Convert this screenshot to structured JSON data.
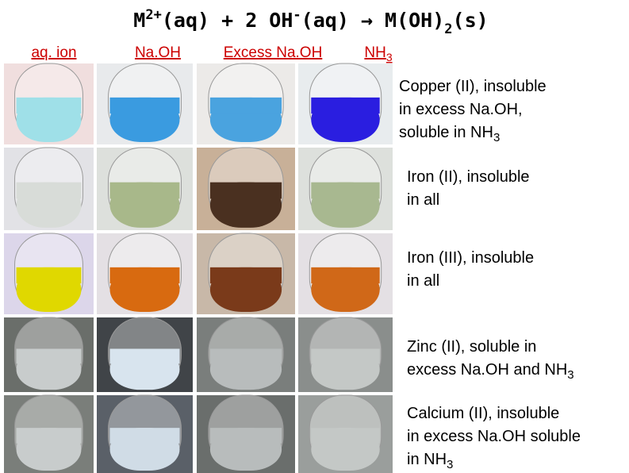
{
  "title": [
    "M",
    "2+",
    "(aq)  +  2 OH",
    "-",
    "(aq)  →  M(OH)",
    "2",
    "(s)"
  ],
  "headers": [
    [
      "aq. ion"
    ],
    [
      "Na.OH"
    ],
    [
      "Excess Na.OH"
    ],
    [
      "NH",
      "3"
    ]
  ],
  "rows": [
    {
      "lines": [
        [
          "Copper (II), insoluble"
        ],
        [
          "in excess Na.OH,"
        ],
        [
          "soluble in NH",
          "3"
        ]
      ]
    },
    {
      "lines": [
        [
          "Iron (II), insoluble"
        ],
        [
          "in all"
        ]
      ]
    },
    {
      "lines": [
        [
          "Iron (III), insoluble"
        ],
        [
          "in all"
        ]
      ]
    },
    {
      "lines": [
        [
          "Zinc (II), soluble in"
        ],
        [
          "excess Na.OH and NH",
          "3"
        ]
      ]
    },
    {
      "lines": [
        [
          "Calcium (II), insoluble"
        ],
        [
          "in excess Na.OH soluble"
        ],
        [
          "in NH",
          "3"
        ]
      ]
    }
  ]
}
